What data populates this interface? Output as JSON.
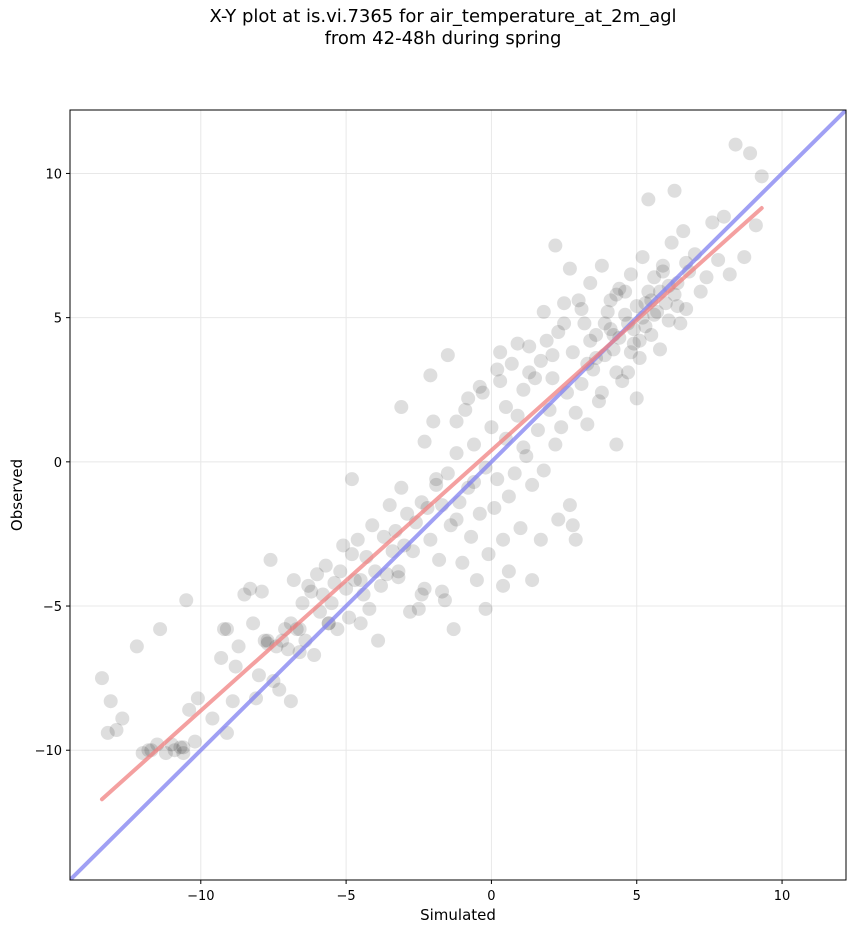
{
  "chart_data": {
    "type": "scatter",
    "title_line1": "X-Y plot at is.vi.7365 for air_temperature_at_2m_agl",
    "title_line2": "from 42-48h during spring",
    "xlabel": "Simulated",
    "ylabel": "Observed",
    "xlim": [
      -14.5,
      12.2
    ],
    "ylim": [
      -14.5,
      12.2
    ],
    "xticks": [
      -10,
      -5,
      0,
      5,
      10
    ],
    "yticks": [
      -10,
      -5,
      0,
      5,
      10
    ],
    "grid": true,
    "legend": "none",
    "colors": {
      "points": "#000000",
      "regression": "#f08080",
      "identity": "#8080f0"
    },
    "regression_line": {
      "x": [
        -13.4,
        9.3
      ],
      "y": [
        -11.7,
        8.8
      ]
    },
    "identity_line": {
      "x": [
        -14.5,
        12.2
      ],
      "y": [
        -14.5,
        12.2
      ]
    },
    "points": [
      [
        -13.4,
        -7.5
      ],
      [
        -13.2,
        -9.4
      ],
      [
        -13.1,
        -8.3
      ],
      [
        -12.9,
        -9.3
      ],
      [
        -12.7,
        -8.9
      ],
      [
        -12.2,
        -6.4
      ],
      [
        -12,
        -10.1
      ],
      [
        -11.8,
        -10
      ],
      [
        -11.5,
        -9.8
      ],
      [
        -11.4,
        -5.8
      ],
      [
        -11.2,
        -10.1
      ],
      [
        -11,
        -9.8
      ],
      [
        -10.9,
        -10
      ],
      [
        -10.7,
        -9.9
      ],
      [
        -10.6,
        -10.1
      ],
      [
        -10.5,
        -4.8
      ],
      [
        -10.4,
        -8.6
      ],
      [
        -10.2,
        -9.7
      ],
      [
        -10.1,
        -8.2
      ],
      [
        -9.6,
        -8.9
      ],
      [
        -9.3,
        -6.8
      ],
      [
        -9.1,
        -9.4
      ],
      [
        -9.1,
        -5.8
      ],
      [
        -8.9,
        -8.3
      ],
      [
        -8.8,
        -7.1
      ],
      [
        -8.7,
        -6.4
      ],
      [
        -8.5,
        -4.6
      ],
      [
        -8.2,
        -5.6
      ],
      [
        -8.1,
        -8.2
      ],
      [
        -8,
        -7.4
      ],
      [
        -7.9,
        -4.5
      ],
      [
        -7.8,
        -6.2
      ],
      [
        -7.7,
        -6.3
      ],
      [
        -7.6,
        -3.4
      ],
      [
        -7.5,
        -7.6
      ],
      [
        -7.4,
        -6.4
      ],
      [
        -7.3,
        -7.9
      ],
      [
        -7.2,
        -6.2
      ],
      [
        -7.1,
        -5.8
      ],
      [
        -7,
        -6.5
      ],
      [
        -6.9,
        -5.6
      ],
      [
        -6.8,
        -4.1
      ],
      [
        -6.7,
        -5.8
      ],
      [
        -6.6,
        -6.6
      ],
      [
        -6.5,
        -4.9
      ],
      [
        -6.4,
        -6.2
      ],
      [
        -6.3,
        -4.3
      ],
      [
        -6.2,
        -4.5
      ],
      [
        -6.1,
        -6.7
      ],
      [
        -6,
        -3.9
      ],
      [
        -5.9,
        -5.2
      ],
      [
        -5.8,
        -4.6
      ],
      [
        -5.7,
        -3.6
      ],
      [
        -5.6,
        -5.6
      ],
      [
        -5.5,
        -4.9
      ],
      [
        -5.4,
        -4.2
      ],
      [
        -5.3,
        -5.8
      ],
      [
        -5.2,
        -3.8
      ],
      [
        -5.1,
        -2.9
      ],
      [
        -5,
        -4.4
      ],
      [
        -4.9,
        -5.4
      ],
      [
        -4.8,
        -3.2
      ],
      [
        -4.7,
        -4.1
      ],
      [
        -4.6,
        -2.7
      ],
      [
        -4.5,
        -5.6
      ],
      [
        -4.4,
        -4.6
      ],
      [
        -4.3,
        -3.3
      ],
      [
        -4.2,
        -5.1
      ],
      [
        -4.1,
        -2.2
      ],
      [
        -4,
        -3.8
      ],
      [
        -3.9,
        -6.2
      ],
      [
        -3.8,
        -4.3
      ],
      [
        -3.7,
        -2.6
      ],
      [
        -3.6,
        -3.9
      ],
      [
        -3.5,
        -1.5
      ],
      [
        -3.4,
        -3.1
      ],
      [
        -3.3,
        -2.4
      ],
      [
        -3.2,
        -4
      ],
      [
        -3.1,
        -0.9
      ],
      [
        -3,
        -2.9
      ],
      [
        -2.9,
        -1.8
      ],
      [
        -2.8,
        -5.2
      ],
      [
        -2.7,
        -3.1
      ],
      [
        -2.6,
        -2.1
      ],
      [
        -2.5,
        -5.1
      ],
      [
        -2.4,
        -1.4
      ],
      [
        -2.3,
        -4.4
      ],
      [
        -2.2,
        -1.6
      ],
      [
        -2.1,
        -2.7
      ],
      [
        -2,
        1.4
      ],
      [
        -1.9,
        -0.6
      ],
      [
        -1.8,
        -3.4
      ],
      [
        -1.7,
        -1.5
      ],
      [
        -1.6,
        -4.8
      ],
      [
        -1.5,
        -0.4
      ],
      [
        -1.4,
        -2.2
      ],
      [
        -1.3,
        -5.8
      ],
      [
        -1.2,
        0.3
      ],
      [
        -1.1,
        -1.4
      ],
      [
        -1,
        -3.5
      ],
      [
        -0.9,
        1.8
      ],
      [
        -0.8,
        -0.9
      ],
      [
        -0.7,
        -2.6
      ],
      [
        -0.6,
        0.6
      ],
      [
        -0.5,
        -4.1
      ],
      [
        -0.4,
        -1.8
      ],
      [
        -0.3,
        2.4
      ],
      [
        -0.2,
        -0.2
      ],
      [
        -0.1,
        -3.2
      ],
      [
        0,
        1.2
      ],
      [
        0.1,
        -1.6
      ],
      [
        0.2,
        -0.6
      ],
      [
        0.3,
        2.8
      ],
      [
        0.4,
        -2.7
      ],
      [
        0.5,
        0.8
      ],
      [
        0.6,
        -1.2
      ],
      [
        0.7,
        3.4
      ],
      [
        0.8,
        -0.4
      ],
      [
        0.9,
        1.6
      ],
      [
        1,
        -2.3
      ],
      [
        1.1,
        2.5
      ],
      [
        1.2,
        0.2
      ],
      [
        1.3,
        4
      ],
      [
        1.4,
        -0.8
      ],
      [
        1.5,
        2.9
      ],
      [
        1.6,
        1.1
      ],
      [
        1.7,
        3.5
      ],
      [
        1.8,
        -0.3
      ],
      [
        1.9,
        4.2
      ],
      [
        2,
        1.8
      ],
      [
        2.1,
        2.9
      ],
      [
        2.2,
        0.6
      ],
      [
        2.3,
        4.5
      ],
      [
        2.4,
        1.2
      ],
      [
        2.5,
        5.5
      ],
      [
        2.6,
        2.4
      ],
      [
        2.7,
        -1.5
      ],
      [
        2.8,
        3.8
      ],
      [
        2.9,
        1.7
      ],
      [
        3,
        5.6
      ],
      [
        3.1,
        2.7
      ],
      [
        3.2,
        4.8
      ],
      [
        3.3,
        1.3
      ],
      [
        3.4,
        6.2
      ],
      [
        3.5,
        3.2
      ],
      [
        3.6,
        4.4
      ],
      [
        3.7,
        2.1
      ],
      [
        3.8,
        6.8
      ],
      [
        3.9,
        3.7
      ],
      [
        4,
        5.2
      ],
      [
        4.1,
        4.6
      ],
      [
        4.2,
        3.9
      ],
      [
        4.3,
        5.8
      ],
      [
        4.4,
        4.3
      ],
      [
        4.5,
        2.8
      ],
      [
        4.6,
        5.1
      ],
      [
        4.7,
        4.8
      ],
      [
        4.8,
        6.5
      ],
      [
        4.9,
        4.1
      ],
      [
        5,
        5.4
      ],
      [
        5.1,
        3.6
      ],
      [
        5.2,
        7.1
      ],
      [
        5.3,
        4.7
      ],
      [
        5.4,
        5.9
      ],
      [
        5.5,
        4.4
      ],
      [
        5.6,
        6.4
      ],
      [
        5.7,
        5.2
      ],
      [
        5.8,
        3.9
      ],
      [
        5.9,
        6.8
      ],
      [
        6,
        5.5
      ],
      [
        6.1,
        4.9
      ],
      [
        6.2,
        7.6
      ],
      [
        6.3,
        5.8
      ],
      [
        6.4,
        6.2
      ],
      [
        6.5,
        4.8
      ],
      [
        6.6,
        8
      ],
      [
        6.7,
        5.3
      ],
      [
        6.8,
        6.6
      ],
      [
        7,
        7.2
      ],
      [
        7.2,
        5.9
      ],
      [
        7.4,
        6.4
      ],
      [
        7.6,
        8.3
      ],
      [
        7.8,
        7
      ],
      [
        8,
        8.5
      ],
      [
        8.2,
        6.5
      ],
      [
        8.4,
        11
      ],
      [
        8.7,
        7.1
      ],
      [
        8.9,
        10.7
      ],
      [
        9.1,
        8.2
      ],
      [
        9.3,
        9.9
      ],
      [
        -1.5,
        3.7
      ],
      [
        -2.1,
        3
      ],
      [
        -0.8,
        2.2
      ],
      [
        -3.1,
        1.9
      ],
      [
        0.2,
        3.2
      ],
      [
        0.9,
        4.1
      ],
      [
        0.4,
        -4.3
      ],
      [
        -0.2,
        -5.1
      ],
      [
        0.6,
        -3.8
      ],
      [
        1.4,
        -4.1
      ],
      [
        1.7,
        -2.7
      ],
      [
        2.3,
        -2
      ],
      [
        2.9,
        -2.7
      ],
      [
        2.8,
        -2.2
      ],
      [
        1.1,
        0.5
      ],
      [
        -0.6,
        -0.7
      ],
      [
        -1.2,
        -2
      ],
      [
        4.3,
        3.1
      ],
      [
        4.1,
        5.6
      ],
      [
        4.6,
        5.9
      ],
      [
        4.9,
        4.6
      ],
      [
        5.2,
        5
      ],
      [
        5.5,
        5.6
      ],
      [
        5.8,
        5.9
      ],
      [
        4.4,
        6
      ],
      [
        3.9,
        4.8
      ],
      [
        3.6,
        3.6
      ],
      [
        4.8,
        3.8
      ],
      [
        5.1,
        4.2
      ],
      [
        5.6,
        5.1
      ],
      [
        6.1,
        6.1
      ],
      [
        6.4,
        5.4
      ],
      [
        5.9,
        6.6
      ],
      [
        4.2,
        4.4
      ],
      [
        3.4,
        4.2
      ],
      [
        3.1,
        5.3
      ],
      [
        2.7,
        6.7
      ],
      [
        2.2,
        7.5
      ],
      [
        5.4,
        9.1
      ],
      [
        6.3,
        9.4
      ],
      [
        5,
        2.2
      ],
      [
        4.3,
        0.6
      ],
      [
        2.5,
        4.8
      ],
      [
        1.8,
        5.2
      ],
      [
        0.3,
        3.8
      ],
      [
        -0.4,
        2.6
      ],
      [
        -1.9,
        -0.8
      ],
      [
        -2.4,
        -4.6
      ],
      [
        -1.7,
        -4.5
      ],
      [
        -3.2,
        -3.8
      ],
      [
        -4.5,
        -4.1
      ],
      [
        -5.6,
        -5.6
      ],
      [
        -6.6,
        -5.8
      ],
      [
        -7.7,
        -6.2
      ],
      [
        -8.3,
        -4.4
      ],
      [
        -9.2,
        -5.8
      ],
      [
        -10.6,
        -9.9
      ],
      [
        -11.7,
        -10
      ],
      [
        -6.9,
        -8.3
      ],
      [
        -4.8,
        -0.6
      ],
      [
        -2.3,
        0.7
      ],
      [
        -1.2,
        1.4
      ],
      [
        0.5,
        1.9
      ],
      [
        1.3,
        3.1
      ],
      [
        2.1,
        3.7
      ],
      [
        3.3,
        3.4
      ],
      [
        3.8,
        2.4
      ],
      [
        4.7,
        3.1
      ],
      [
        5.3,
        5.5
      ],
      [
        6.7,
        6.9
      ]
    ]
  }
}
